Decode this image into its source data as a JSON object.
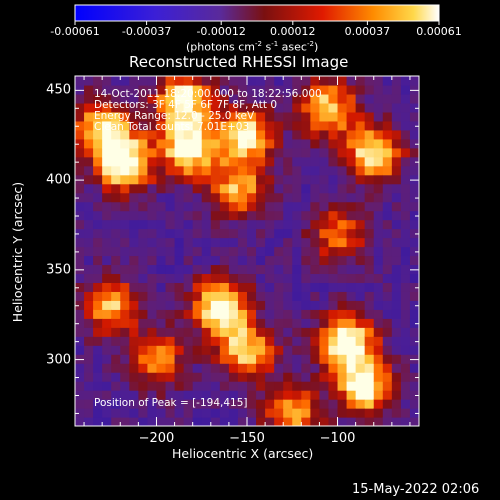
{
  "colorbar": {
    "tick_labels": [
      "-0.00061",
      "-0.00037",
      "-0.00012",
      "0.00012",
      "0.00037",
      "0.00061"
    ],
    "unit_label_parts": [
      "(photons cm",
      "-2",
      " s",
      "-1",
      " asec",
      "-2",
      ")"
    ]
  },
  "chart_data": {
    "type": "heatmap",
    "title": "Reconstructed RHESSI Image",
    "xlabel": "Heliocentric X (arcsec)",
    "ylabel": "Heliocentric Y (arcsec)",
    "xlim": [
      -245,
      -55
    ],
    "ylim": [
      263,
      458
    ],
    "x_ticks": [
      -200,
      -150,
      -100
    ],
    "y_ticks": [
      300,
      350,
      400,
      450
    ],
    "colorscale_range": [
      -0.00061,
      0.00061
    ],
    "colorscale_ticks": [
      -0.00061,
      -0.00037,
      -0.00012,
      0.00012,
      0.00037,
      0.00061
    ],
    "annotations": [
      "14-Oct-2011 18:20:00.000 to 18:22:56.000",
      "Detectors: 3F 4F 5F 6F 7F 8F, Att 0",
      "Energy Range: 12.0 - 25.0 keV",
      "Clean     Total counts: 7.01E+03"
    ],
    "peak_label": "Position of Peak = [-194,415]",
    "peak_position": [
      -194,
      415
    ],
    "bright_regions": [
      {
        "x": -218,
        "y": 410,
        "level": 0.9
      },
      {
        "x": -182,
        "y": 418,
        "level": 0.85
      },
      {
        "x": -185,
        "y": 445,
        "level": 0.8
      },
      {
        "x": -230,
        "y": 430,
        "level": 0.7
      },
      {
        "x": -150,
        "y": 425,
        "level": 0.75
      },
      {
        "x": -80,
        "y": 415,
        "level": 0.8
      },
      {
        "x": -105,
        "y": 440,
        "level": 0.7
      },
      {
        "x": -155,
        "y": 395,
        "level": 0.6
      },
      {
        "x": -165,
        "y": 330,
        "level": 0.85
      },
      {
        "x": -150,
        "y": 305,
        "level": 0.7
      },
      {
        "x": -95,
        "y": 310,
        "level": 0.9
      },
      {
        "x": -85,
        "y": 285,
        "level": 0.8
      },
      {
        "x": -225,
        "y": 330,
        "level": 0.65
      },
      {
        "x": -200,
        "y": 300,
        "level": 0.55
      },
      {
        "x": -100,
        "y": 370,
        "level": 0.5
      },
      {
        "x": -125,
        "y": 270,
        "level": 0.6
      }
    ]
  },
  "footer": {
    "timestamp": "15-May-2022 02:06"
  }
}
